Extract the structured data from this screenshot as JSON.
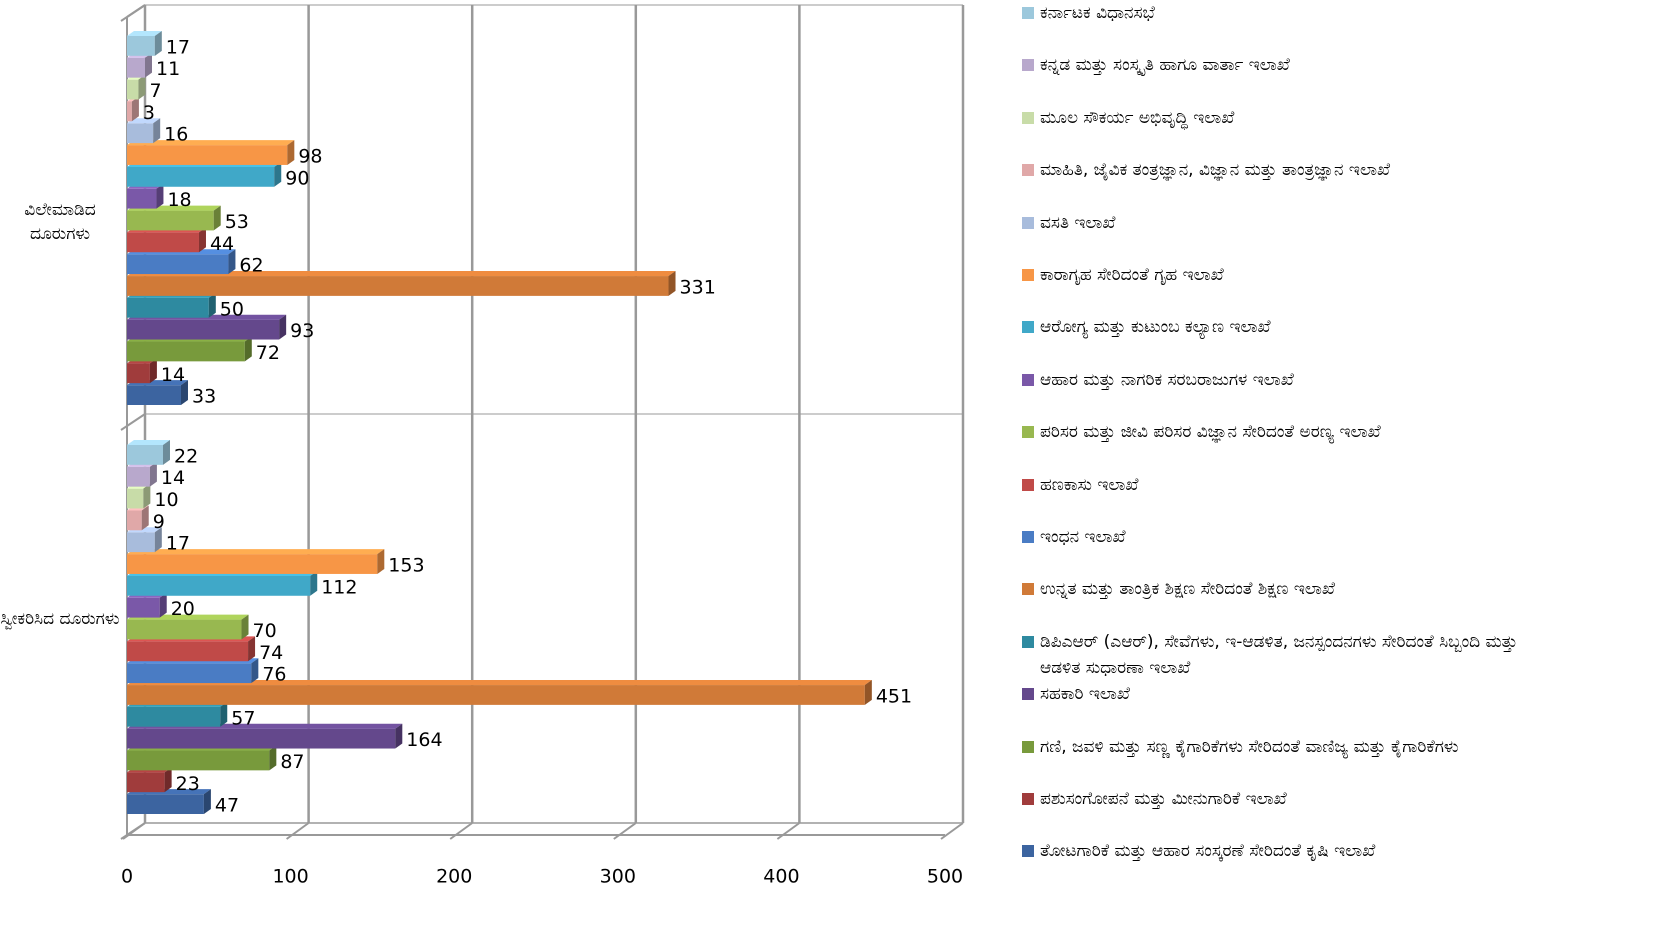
{
  "chart_data": {
    "type": "bar",
    "orientation": "horizontal",
    "three_d": true,
    "categories": [
      "ಸ್ವೀಕರಿಸಿದ ದೂರುಗಳು",
      "ವಿಲೇಮಾಡಿದ ದೂರುಗಳು"
    ],
    "series": [
      {
        "name": "ತೋಟಗಾರಿಕೆ ಮತ್ತು ಆಹಾರ ಸಂಸ್ಕರಣೆ ಸೇರಿದಂತೆ ಕೃಷಿ ಇಲಾಖೆ",
        "color": "#3c64a0",
        "values": [
          47,
          33
        ]
      },
      {
        "name": "ಪಶುಸಂಗೋಪನೆ ಮತ್ತು ಮೀನುಗಾರಿಕೆ ಇಲಾಖೆ",
        "color": "#a03c3c",
        "values": [
          23,
          14
        ]
      },
      {
        "name": "ಗಣಿ, ಜವಳಿ ಮತ್ತು ಸಣ್ಣ ಕೈಗಾರಿಕೆಗಳು ಸೇರಿದಂತೆ ವಾಣಿಜ್ಯ ಮತ್ತು ಕೈಗಾರಿಕೆಗಳು",
        "color": "#789a3c",
        "values": [
          87,
          72
        ]
      },
      {
        "name": "ಸಹಕಾರಿ ಇಲಾಖೆ",
        "color": "#64488c",
        "values": [
          164,
          93
        ]
      },
      {
        "name": "ಡಿಪಿಎಆರ್ (ಎಆರ್), ಸೇವೆಗಳು, ಇ-ಆಡಳಿತ, ಜನಸ್ಪಂದನಗಳು ಸೇರಿದಂತೆ ಸಿಬ್ಬಂದಿ ಮತ್ತು ಆಡಳಿತ ಸುಧಾರಣಾ ಇಲಾಖೆ",
        "color": "#2e8aa0",
        "values": [
          57,
          50
        ]
      },
      {
        "name": "ಉನ್ನತ ಮತ್ತು ತಾಂತ್ರಿಕ ಶಿಕ್ಷಣ ಸೇರಿದಂತೆ ಶಿಕ್ಷಣ ಇಲಾಖೆ",
        "color": "#d07a38",
        "values": [
          451,
          331
        ]
      },
      {
        "name": "ಇಂಧನ ಇಲಾಖೆ",
        "color": "#4a7cc4",
        "values": [
          76,
          62
        ]
      },
      {
        "name": "ಹಣಕಾಸು ಇಲಾಖೆ",
        "color": "#c04a48",
        "values": [
          74,
          44
        ]
      },
      {
        "name": "ಪರಿಸರ ಮತ್ತು ಜೀವಿ ಪರಿಸರ ವಿಜ್ಞಾನ ಸೇರಿದಂತೆ ಅರಣ್ಯ ಇಲಾಖೆ",
        "color": "#98b850",
        "values": [
          70,
          53
        ]
      },
      {
        "name": "ಆಹಾರ ಮತ್ತು ನಾಗರಿಕ ಸರಬರಾಜುಗಳ ಇಲಾಖೆ",
        "color": "#7a58a8",
        "values": [
          20,
          18
        ]
      },
      {
        "name": "ಆರೋಗ್ಯ ಮತ್ತು ಕುಟುಂಬ ಕಲ್ಯಾಣ ಇಲಾಖೆ",
        "color": "#40a8c8",
        "values": [
          112,
          90
        ]
      },
      {
        "name": "ಕಾರಾಗೃಹ ಸೇರಿದಂತೆ ಗೃಹ ಇಲಾಖೆ",
        "color": "#f79646",
        "values": [
          153,
          98
        ]
      },
      {
        "name": "ವಸತಿ ಇಲಾಖೆ",
        "color": "#a8bcdc",
        "values": [
          17,
          16
        ]
      },
      {
        "name": "ಮಾಹಿತಿ, ಜೈವಿಕ ತಂತ್ರಜ್ಞಾನ, ವಿಜ್ಞಾನ ಮತ್ತು ತಾಂತ್ರಜ್ಞಾನ ಇಲಾಖೆ",
        "color": "#e0a8a8",
        "values": [
          9,
          3
        ]
      },
      {
        "name": "ಮೂಲ ಸೌಕರ್ಯ ಅಭಿವೃದ್ಧಿ ಇಲಾಖೆ",
        "color": "#c8dca8",
        "values": [
          10,
          7
        ]
      },
      {
        "name": "ಕನ್ನಡ ಮತ್ತು ಸಂಸ್ಕೃತಿ ಹಾಗೂ ವಾರ್ತಾ ಇಲಾಖೆ",
        "color": "#b8a8cc",
        "values": [
          14,
          11
        ]
      },
      {
        "name": "ಕರ್ನಾಟಕ ವಿಧಾನಸಭೆ",
        "color": "#9cc8dc",
        "values": [
          22,
          17
        ]
      }
    ],
    "xlim": [
      0,
      500
    ],
    "xticks": [
      0,
      100,
      200,
      300,
      400,
      500
    ],
    "grid": true,
    "legend": "right"
  }
}
